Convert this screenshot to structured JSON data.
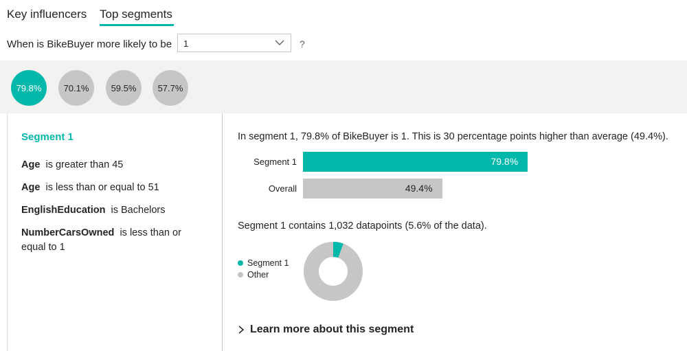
{
  "tabs": {
    "key_influencers": "Key influencers",
    "top_segments": "Top segments"
  },
  "question": {
    "prefix": "When is BikeBuyer more likely to be",
    "selected_value": "1",
    "suffix": "?"
  },
  "segment_bubbles": [
    {
      "label": "79.8%",
      "active": true
    },
    {
      "label": "70.1%",
      "active": false
    },
    {
      "label": "59.5%",
      "active": false
    },
    {
      "label": "57.7%",
      "active": false
    }
  ],
  "segment": {
    "title": "Segment 1",
    "conditions": [
      {
        "field": "Age",
        "text": "is greater than 45"
      },
      {
        "field": "Age",
        "text": "is less than or equal to 51"
      },
      {
        "field": "EnglishEducation",
        "text": "is Bachelors"
      },
      {
        "field": "NumberCarsOwned",
        "text": "is less than or equal to 1"
      }
    ]
  },
  "summary": "In segment 1, 79.8% of BikeBuyer is 1. This is 30 percentage points higher than average (49.4%).",
  "comparison": {
    "bars": [
      {
        "label": "Segment 1",
        "value": 79.8,
        "value_label": "79.8%",
        "color": "#01b8aa"
      },
      {
        "label": "Overall",
        "value": 49.4,
        "value_label": "49.4%",
        "color": "#c8c6c4"
      }
    ]
  },
  "contains": "Segment 1 contains 1,032 datapoints (5.6% of the data).",
  "share": {
    "segment_fraction": 0.056,
    "legend": [
      {
        "label": "Segment 1",
        "color": "#01b8aa"
      },
      {
        "label": "Other",
        "color": "#c8c6c4"
      }
    ]
  },
  "learn_more": "Learn more about this segment",
  "colors": {
    "accent": "#01b8aa",
    "neutral": "#c8c6c4",
    "strip": "#f3f2f1"
  }
}
